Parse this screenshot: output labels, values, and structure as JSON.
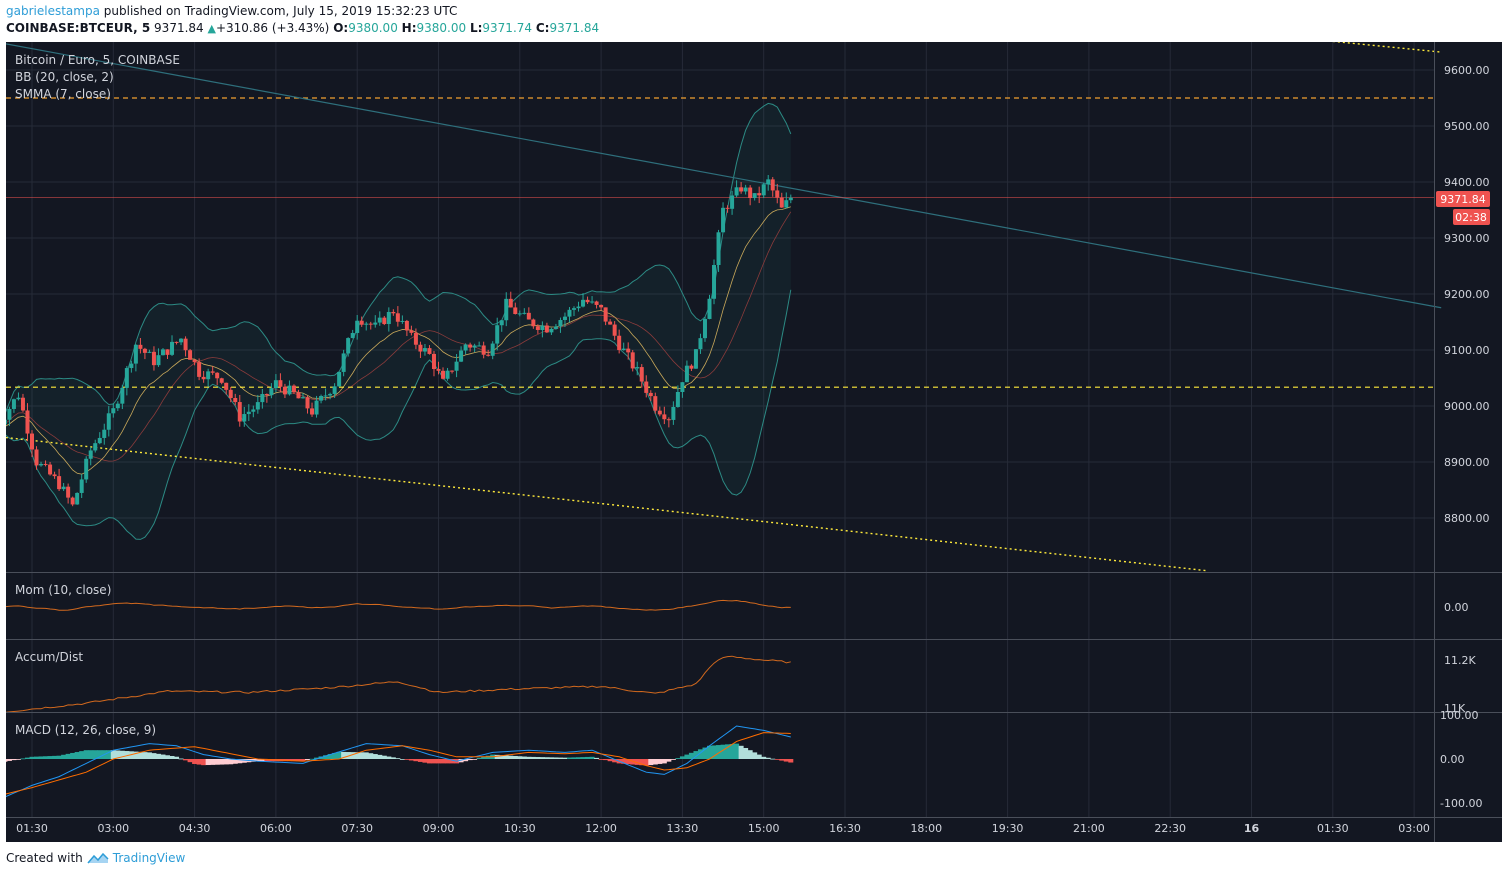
{
  "header": {
    "author": "gabrielestampa",
    "published_text": "published on TradingView.com, July 15, 2019 15:32:23 UTC",
    "symbol": "COINBASE:BTCEUR, 5",
    "last": "9371.84",
    "change": "+310.86 (+3.43%)",
    "o_label": "O:",
    "o_value": "9380.00",
    "h_label": "H:",
    "h_value": "9380.00",
    "l_label": "L:",
    "l_value": "9371.74",
    "c_label": "C:",
    "c_value": "9371.84"
  },
  "legends": {
    "main": "Bitcoin / Euro, 5, COINBASE",
    "bb": "BB (20, close, 2)",
    "smma": "SMMA (7, close)",
    "mom": "Mom (10, close)",
    "accum": "Accum/Dist",
    "macd": "MACD (12, 26, close, 9)"
  },
  "price_tag": {
    "value": "9371.84",
    "countdown": "02:38"
  },
  "footer": {
    "created_with": "Created with",
    "brand": "TradingView"
  },
  "colors": {
    "background": "#131722",
    "grid": "#262b38",
    "up": "#26a69a",
    "down": "#ef5350",
    "bb_line": "#2c8a84",
    "smma": "#c8a85a",
    "support": "#ffeb3b",
    "resistance": "#f0a030",
    "trendline": "#2e6f7c",
    "price_tag": "#ef5350",
    "mom": "#d2691e",
    "macd_line": "#2196f3",
    "signal_line": "#ff6d00"
  },
  "chart_data": {
    "type": "candlestick",
    "x_ticks": [
      "01:30",
      "03:00",
      "04:30",
      "06:00",
      "07:30",
      "09:00",
      "10:30",
      "12:00",
      "13:30",
      "15:00",
      "16:30",
      "18:00",
      "19:30",
      "21:00",
      "22:30",
      "16",
      "01:30",
      "03:00"
    ],
    "price_axis": {
      "ticks": [
        "9600.00",
        "9500.00",
        "9400.00",
        "9300.00",
        "9200.00",
        "9100.00",
        "9000.00",
        "8900.00",
        "8800.00"
      ],
      "range": [
        8710,
        9650
      ]
    },
    "horizontal_levels": [
      {
        "price": 9550,
        "style": "dashed-orange"
      },
      {
        "price": 9033,
        "style": "dashed-yellow"
      }
    ],
    "trendlines": [
      {
        "from": {
          "time": "00:50",
          "price": 9650
        },
        "to": {
          "time": "03:30 (16th)",
          "price": 9175
        },
        "style": "solid-teal"
      },
      {
        "from": {
          "time": "00:50",
          "price": 8945
        },
        "to": {
          "time": "23:10",
          "price": 8705
        },
        "style": "dotted-yellow"
      },
      {
        "from": {
          "time": "00:35 (16th)",
          "price": 9660
        },
        "to": {
          "time": "03:30 (16th)",
          "price": 9632
        },
        "style": "dotted-yellow"
      }
    ],
    "price_anchors": [
      [
        "00:50",
        8960
      ],
      [
        "01:15",
        9020
      ],
      [
        "01:35",
        8900
      ],
      [
        "02:00",
        8860
      ],
      [
        "02:15",
        8820
      ],
      [
        "02:35",
        8920
      ],
      [
        "03:00",
        8990
      ],
      [
        "03:25",
        9110
      ],
      [
        "03:45",
        9080
      ],
      [
        "04:15",
        9120
      ],
      [
        "04:35",
        9060
      ],
      [
        "05:00",
        9050
      ],
      [
        "05:20",
        8980
      ],
      [
        "05:40",
        9000
      ],
      [
        "06:00",
        9040
      ],
      [
        "06:20",
        9020
      ],
      [
        "06:40",
        8990
      ],
      [
        "07:05",
        9040
      ],
      [
        "07:30",
        9160
      ],
      [
        "07:50",
        9140
      ],
      [
        "08:10",
        9170
      ],
      [
        "08:30",
        9120
      ],
      [
        "08:50",
        9090
      ],
      [
        "09:05",
        9040
      ],
      [
        "09:30",
        9110
      ],
      [
        "09:55",
        9100
      ],
      [
        "10:15",
        9180
      ],
      [
        "10:40",
        9150
      ],
      [
        "11:00",
        9140
      ],
      [
        "11:20",
        9160
      ],
      [
        "11:40",
        9190
      ],
      [
        "12:00",
        9170
      ],
      [
        "12:20",
        9110
      ],
      [
        "12:40",
        9060
      ],
      [
        "13:00",
        9000
      ],
      [
        "13:15",
        8980
      ],
      [
        "13:30",
        9050
      ],
      [
        "13:45",
        9090
      ],
      [
        "14:00",
        9200
      ],
      [
        "14:15",
        9350
      ],
      [
        "14:35",
        9390
      ],
      [
        "14:50",
        9370
      ],
      [
        "15:05",
        9400
      ],
      [
        "15:20",
        9350
      ],
      [
        "15:30",
        9371.84
      ]
    ],
    "momentum": {
      "axis_ticks": [
        "0.00"
      ]
    },
    "accum_dist": {
      "axis_ticks": [
        "11.2K",
        "11K"
      ],
      "anchors": [
        [
          "00:50",
          10980
        ],
        [
          "02:30",
          11020
        ],
        [
          "04:00",
          11070
        ],
        [
          "05:30",
          11065
        ],
        [
          "07:00",
          11085
        ],
        [
          "08:15",
          11110
        ],
        [
          "09:00",
          11065
        ],
        [
          "10:30",
          11080
        ],
        [
          "12:00",
          11090
        ],
        [
          "13:00",
          11060
        ],
        [
          "13:45",
          11100
        ],
        [
          "14:05",
          11190
        ],
        [
          "14:20",
          11215
        ],
        [
          "15:00",
          11200
        ],
        [
          "15:30",
          11190
        ]
      ]
    },
    "macd": {
      "axis_ticks": [
        "100.00",
        "0.00",
        "-100.00"
      ],
      "macd_anchors": [
        [
          "00:50",
          -95
        ],
        [
          "01:30",
          -60
        ],
        [
          "02:00",
          -40
        ],
        [
          "02:30",
          -10
        ],
        [
          "03:00",
          20
        ],
        [
          "03:40",
          35
        ],
        [
          "04:10",
          30
        ],
        [
          "04:40",
          10
        ],
        [
          "05:10",
          0
        ],
        [
          "05:40",
          -5
        ],
        [
          "06:30",
          -10
        ],
        [
          "07:00",
          10
        ],
        [
          "07:40",
          35
        ],
        [
          "08:20",
          30
        ],
        [
          "08:50",
          10
        ],
        [
          "09:20",
          -5
        ],
        [
          "10:00",
          15
        ],
        [
          "10:40",
          20
        ],
        [
          "11:20",
          15
        ],
        [
          "11:50",
          20
        ],
        [
          "12:20",
          -5
        ],
        [
          "12:50",
          -30
        ],
        [
          "13:10",
          -35
        ],
        [
          "13:35",
          -10
        ],
        [
          "14:00",
          30
        ],
        [
          "14:30",
          75
        ],
        [
          "15:00",
          65
        ],
        [
          "15:30",
          50
        ]
      ],
      "signal_anchors": [
        [
          "00:50",
          -85
        ],
        [
          "01:30",
          -65
        ],
        [
          "02:30",
          -30
        ],
        [
          "03:00",
          0
        ],
        [
          "03:40",
          20
        ],
        [
          "04:30",
          28
        ],
        [
          "05:10",
          12
        ],
        [
          "05:40",
          0
        ],
        [
          "06:30",
          -5
        ],
        [
          "07:10",
          0
        ],
        [
          "07:40",
          20
        ],
        [
          "08:20",
          30
        ],
        [
          "08:50",
          20
        ],
        [
          "09:20",
          5
        ],
        [
          "10:00",
          5
        ],
        [
          "10:40",
          15
        ],
        [
          "11:20",
          12
        ],
        [
          "11:50",
          15
        ],
        [
          "12:20",
          5
        ],
        [
          "12:50",
          -15
        ],
        [
          "13:10",
          -25
        ],
        [
          "13:35",
          -20
        ],
        [
          "14:00",
          0
        ],
        [
          "14:30",
          40
        ],
        [
          "15:00",
          60
        ],
        [
          "15:30",
          58
        ]
      ]
    }
  }
}
